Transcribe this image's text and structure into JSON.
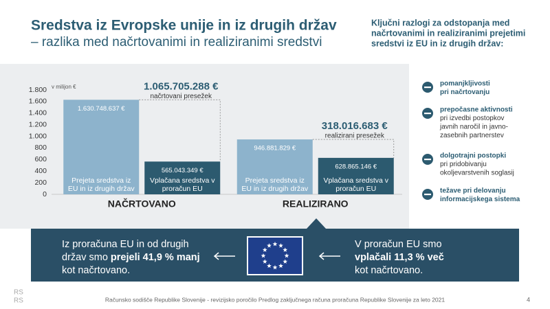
{
  "header": {
    "title": "Sredstva iz Evropske unije in iz drugih držav",
    "subtitle": "– razlika med načrtovanimi in realiziranimi sredstvi"
  },
  "chart_data": {
    "type": "bar",
    "ylabel": "v milijon €",
    "categories": [
      "NAČRTOVANO",
      "REALIZIRANO"
    ],
    "series": [
      {
        "name": "Prejeta sredstva iz EU in iz drugih držav",
        "color": "#8db3cc",
        "values": [
          1630.748637,
          946.881829
        ],
        "value_labels": [
          "1.630.748.637 €",
          "946.881.829 €"
        ]
      },
      {
        "name": "Vplačana sredstva v proračun EU",
        "color": "#2c5a6f",
        "values": [
          565.043349,
          628.865146
        ],
        "value_labels": [
          "565.043.349 €",
          "628.865.146 €"
        ]
      }
    ],
    "ylim": [
      0,
      1800
    ],
    "yticks": [
      0,
      200,
      400,
      600,
      800,
      {
        "value": 1000,
        "label": "1.000"
      },
      {
        "value": 1200,
        "label": "1.200"
      },
      {
        "value": 1400,
        "label": "1.400"
      },
      {
        "value": 1600,
        "label": "1.600"
      },
      {
        "value": 1800,
        "label": "1.800"
      }
    ],
    "grid": false,
    "annotations": [
      {
        "amount": "1.065.705.288 €",
        "text": "načrtovani presežek"
      },
      {
        "amount": "318.016.683 €",
        "text": "realizirani presežek"
      }
    ]
  },
  "sidebar": {
    "heading": [
      "Ključni razlogi za odstopanja med",
      "načrtovanimi in realiziranimi prejetimi",
      "sredstvi iz EU in iz drugih držav:"
    ],
    "items": [
      {
        "bold": [
          "pomanjkljivosti",
          "pri načrtovanju"
        ]
      },
      {
        "bold": [
          "prepočasne aktivnosti"
        ],
        "text": [
          "pri izvedbi postopkov",
          "javnih naročil in javno-",
          "zasebnih partnerstev"
        ]
      },
      {
        "bold": [
          "dolgotrajni postopki"
        ],
        "text": [
          "pri pridobivanju",
          "okoljevarstvenih soglasij"
        ]
      },
      {
        "bold": [
          "težave pri delovanju",
          "informacijskega sistema"
        ]
      }
    ]
  },
  "banner": {
    "left": {
      "line1": "Iz proračuna EU in od drugih",
      "line2": "držav smo ",
      "line2_bold": "prejeli 41,9 % manj",
      "line3": "kot načrtovano."
    },
    "right": {
      "line1": "V proračun EU smo",
      "line2_bold": "vplačali 11,3 % več",
      "line3": "kot načrtovano."
    }
  },
  "footer": {
    "logo": [
      "RS",
      "RS"
    ],
    "text": "Računsko sodišče Republike Slovenije - revizijsko poročilo Predlog zaključnega računa proračuna Republike Slovenije za leto 2021",
    "page": "4"
  }
}
